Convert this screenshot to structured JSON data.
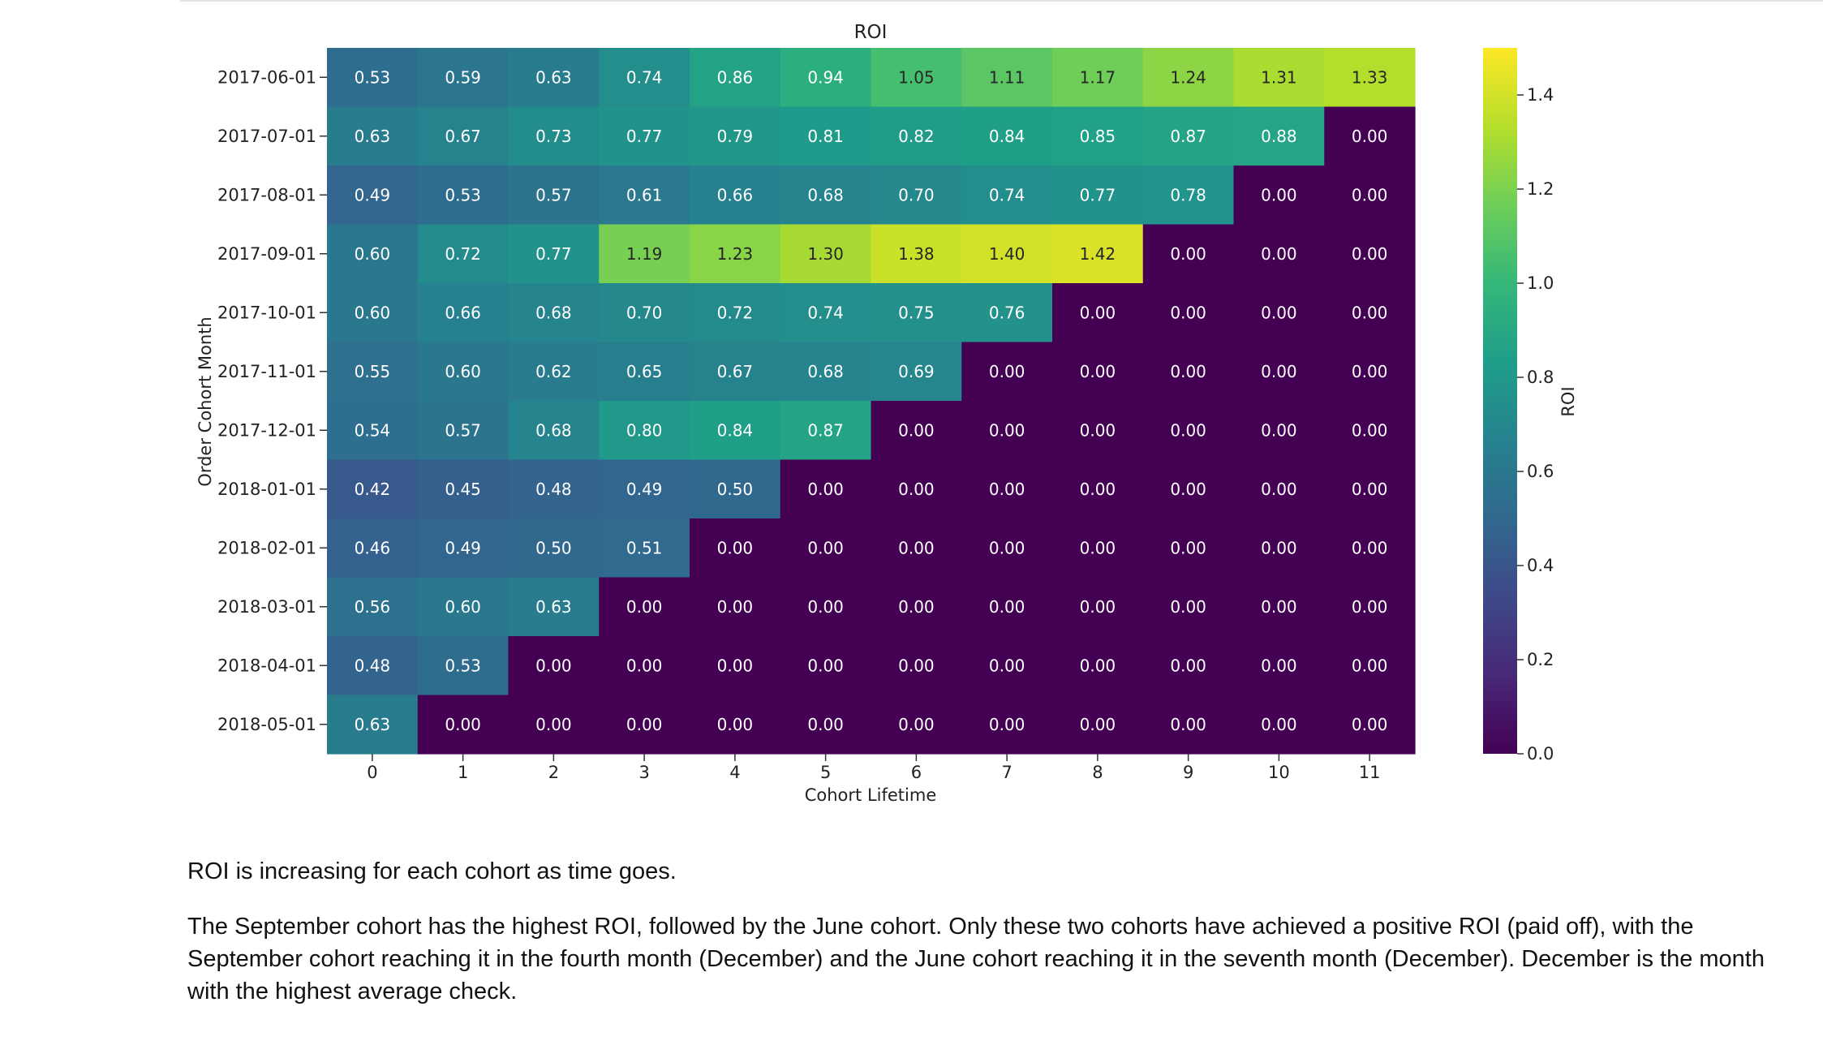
{
  "chart_data": {
    "type": "heatmap",
    "title": "ROI",
    "xlabel": "Cohort Lifetime",
    "ylabel": "Order Cohort Month",
    "colorbar_label": "ROI",
    "colormap": "viridis",
    "x": [
      "0",
      "1",
      "2",
      "3",
      "4",
      "5",
      "6",
      "7",
      "8",
      "9",
      "10",
      "11"
    ],
    "y": [
      "2017-06-01",
      "2017-07-01",
      "2017-08-01",
      "2017-09-01",
      "2017-10-01",
      "2017-11-01",
      "2017-12-01",
      "2018-01-01",
      "2018-02-01",
      "2018-03-01",
      "2018-04-01",
      "2018-05-01"
    ],
    "values": [
      [
        0.53,
        0.59,
        0.63,
        0.74,
        0.86,
        0.94,
        1.05,
        1.11,
        1.17,
        1.24,
        1.31,
        1.33
      ],
      [
        0.63,
        0.67,
        0.73,
        0.77,
        0.79,
        0.81,
        0.82,
        0.84,
        0.85,
        0.87,
        0.88,
        0.0
      ],
      [
        0.49,
        0.53,
        0.57,
        0.61,
        0.66,
        0.68,
        0.7,
        0.74,
        0.77,
        0.78,
        0.0,
        0.0
      ],
      [
        0.6,
        0.72,
        0.77,
        1.19,
        1.23,
        1.3,
        1.38,
        1.4,
        1.42,
        0.0,
        0.0,
        0.0
      ],
      [
        0.6,
        0.66,
        0.68,
        0.7,
        0.72,
        0.74,
        0.75,
        0.76,
        0.0,
        0.0,
        0.0,
        0.0
      ],
      [
        0.55,
        0.6,
        0.62,
        0.65,
        0.67,
        0.68,
        0.69,
        0.0,
        0.0,
        0.0,
        0.0,
        0.0
      ],
      [
        0.54,
        0.57,
        0.68,
        0.8,
        0.84,
        0.87,
        0.0,
        0.0,
        0.0,
        0.0,
        0.0,
        0.0
      ],
      [
        0.42,
        0.45,
        0.48,
        0.49,
        0.5,
        0.0,
        0.0,
        0.0,
        0.0,
        0.0,
        0.0,
        0.0
      ],
      [
        0.46,
        0.49,
        0.5,
        0.51,
        0.0,
        0.0,
        0.0,
        0.0,
        0.0,
        0.0,
        0.0,
        0.0
      ],
      [
        0.56,
        0.6,
        0.63,
        0.0,
        0.0,
        0.0,
        0.0,
        0.0,
        0.0,
        0.0,
        0.0,
        0.0
      ],
      [
        0.48,
        0.53,
        0.0,
        0.0,
        0.0,
        0.0,
        0.0,
        0.0,
        0.0,
        0.0,
        0.0,
        0.0
      ],
      [
        0.63,
        0.0,
        0.0,
        0.0,
        0.0,
        0.0,
        0.0,
        0.0,
        0.0,
        0.0,
        0.0,
        0.0
      ]
    ],
    "vmin": 0.0,
    "vmax": 1.5,
    "colorbar_ticks": [
      "0.0",
      "0.2",
      "0.4",
      "0.6",
      "0.8",
      "1.0",
      "1.2",
      "1.4"
    ],
    "value_format": "2 decimals"
  },
  "text": {
    "paragraph1": "ROI is increasing for each cohort as time goes.",
    "paragraph2": "The September cohort has the highest ROI, followed by the June cohort. Only these two cohorts have achieved a positive ROI (paid off), with the September cohort reaching it in the fourth month (December) and the June cohort reaching it in the seventh month (December). December is the month with the highest average check."
  }
}
